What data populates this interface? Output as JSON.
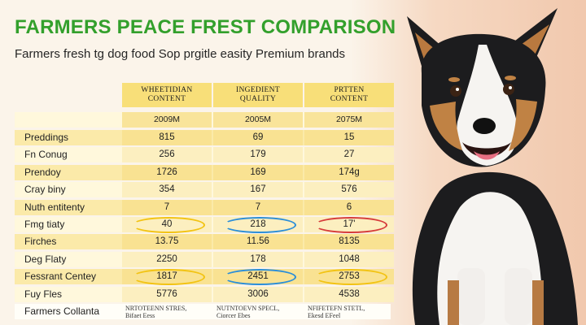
{
  "header": {
    "title": "FARMERS PEACE FREST COMPARISON",
    "subtitle": "Farmers fresh tg dog food Sop prgitle easity Premium brands"
  },
  "columns": [
    {
      "line1": "WHEETIDIAN",
      "line2": "CONTENT",
      "sub": "2009M"
    },
    {
      "line1": "INGEDIENT",
      "line2": "QUALITY",
      "sub": "2005M"
    },
    {
      "line1": "PRTTEN",
      "line2": "CONTENT",
      "sub": "2075M"
    }
  ],
  "rows": [
    {
      "label": "Preddings",
      "values": [
        "815",
        "69",
        "15"
      ]
    },
    {
      "label": "Fn Conug",
      "values": [
        "256",
        "179",
        "27"
      ]
    },
    {
      "label": "Prendoy",
      "values": [
        "1726",
        "169",
        "174g"
      ]
    },
    {
      "label": "Cray biny",
      "values": [
        "354",
        "167",
        "576"
      ]
    },
    {
      "label": "Nuth entitenty",
      "values": [
        "7",
        "7",
        "6"
      ]
    },
    {
      "label": "Fmg tiaty",
      "values": [
        "40",
        "218",
        "17'"
      ]
    },
    {
      "label": "Firches",
      "values": [
        "13.75",
        "11.56",
        "8135"
      ]
    },
    {
      "label": "Deg Flaty",
      "values": [
        "2250",
        "178",
        "1048"
      ]
    },
    {
      "label": "Fessrant Centey",
      "values": [
        "1817",
        "2451",
        "2753"
      ]
    },
    {
      "label": "Fuy Fles",
      "values": [
        "5776",
        "3006",
        "4538"
      ]
    },
    {
      "label": "Farmers Collanta",
      "values": [
        "",
        "",
        ""
      ]
    }
  ],
  "footnotes": [
    [
      "NRTOTEENN STRES,",
      "Bifaet Eess"
    ],
    [
      "NUTNTOEVN SPECL,",
      "Ciorcer Ebes"
    ],
    [
      "NFIFETEFN STETL,",
      "Ekesd EFeel"
    ]
  ],
  "colors": {
    "title": "#33a02c",
    "header_fill": "#f8df79",
    "ring_yellow": "#f2c313",
    "ring_blue": "#2b8ed8",
    "ring_red": "#d63b3b"
  },
  "image": {
    "subject": "dog-photo"
  }
}
